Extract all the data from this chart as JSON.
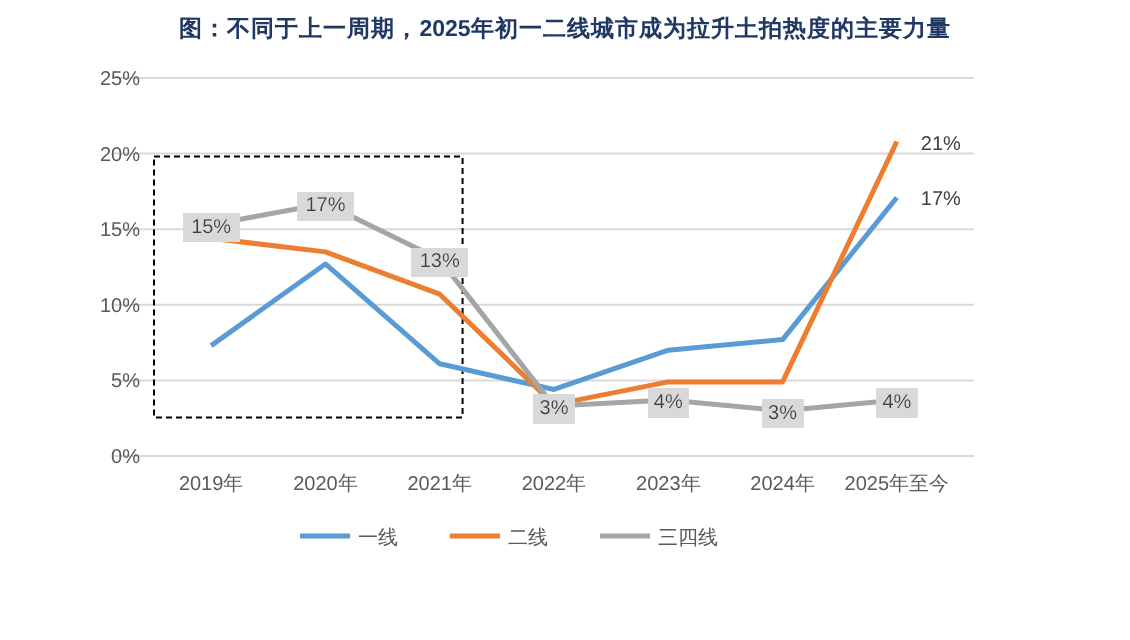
{
  "chart_data": {
    "type": "line",
    "title": "图：不同于上一周期，2025年初一二线城市成为拉升土拍热度的主要力量",
    "categories": [
      "2019年",
      "2020年",
      "2021年",
      "2022年",
      "2023年",
      "2024年",
      "2025年至今"
    ],
    "series": [
      {
        "name": "一线",
        "color": "#5b9bd5",
        "values": [
          7.3,
          12.7,
          6.1,
          4.4,
          7.0,
          7.7,
          17.1
        ],
        "value_labels": [
          null,
          null,
          null,
          null,
          null,
          null,
          "17%"
        ]
      },
      {
        "name": "二线",
        "color": "#ed7d31",
        "values": [
          14.4,
          13.5,
          10.7,
          3.4,
          4.9,
          4.9,
          20.8
        ],
        "value_labels": [
          null,
          null,
          null,
          null,
          null,
          null,
          "21%"
        ]
      },
      {
        "name": "三四线",
        "color": "#a5a5a5",
        "values": [
          15.3,
          16.7,
          13.0,
          3.3,
          3.7,
          3.0,
          3.7
        ],
        "value_labels": [
          "15%",
          "17%",
          "13%",
          "3%",
          "4%",
          "3%",
          "4%"
        ]
      }
    ],
    "ylim": [
      0,
      25
    ],
    "yticks": [
      {
        "value": 0,
        "label": "0%"
      },
      {
        "value": 5,
        "label": "5%"
      },
      {
        "value": 10,
        "label": "10%"
      },
      {
        "value": 15,
        "label": "15%"
      },
      {
        "value": 20,
        "label": "20%"
      },
      {
        "value": 25,
        "label": "25%"
      }
    ],
    "grid": "y",
    "legend": "bottom",
    "marker": "none",
    "line_style": "solid"
  }
}
